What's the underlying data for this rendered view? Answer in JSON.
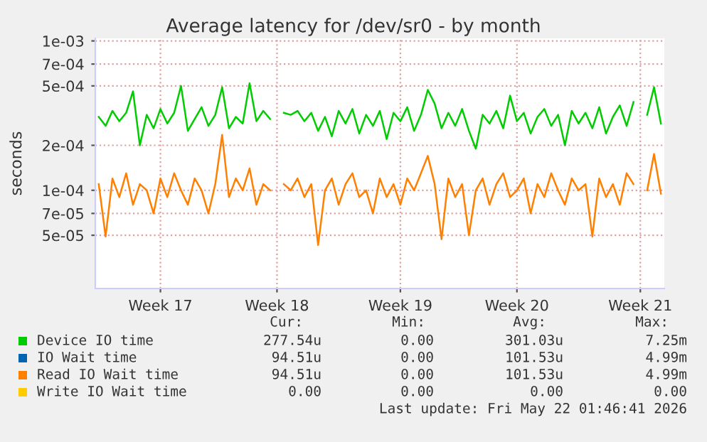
{
  "chart_data": {
    "type": "line",
    "title": "Average latency for /dev/sr0 - by month",
    "ylabel": "seconds",
    "log": "y",
    "grid": true,
    "legend": "bottom",
    "line_style": "solid",
    "marker": "none",
    "categories": [
      null,
      null,
      null,
      null,
      null,
      null,
      null,
      null,
      null,
      "Week 17",
      null,
      null,
      null,
      null,
      null,
      null,
      null,
      null,
      null,
      null,
      null,
      null,
      null,
      null,
      null,
      null,
      "Week 18",
      null,
      null,
      null,
      null,
      null,
      null,
      null,
      null,
      null,
      null,
      null,
      null,
      null,
      null,
      null,
      null,
      null,
      "Week 19",
      null,
      null,
      null,
      null,
      null,
      null,
      null,
      null,
      null,
      null,
      null,
      null,
      null,
      null,
      null,
      null,
      "Week 20",
      null,
      null,
      null,
      null,
      null,
      null,
      null,
      null,
      null,
      null,
      null,
      null,
      null,
      null,
      null,
      null,
      null,
      "Week 21",
      null,
      null,
      null
    ],
    "ylim": [
      2.2e-05,
      0.00104
    ],
    "yticks": [
      {
        "value": 5e-05,
        "label": "5e-05"
      },
      {
        "value": 7e-05,
        "label": "7e-05"
      },
      {
        "value": 0.0001,
        "label": "1e-04"
      },
      {
        "value": 0.0002,
        "label": "2e-04"
      },
      {
        "value": 0.0005,
        "label": "5e-04"
      },
      {
        "value": 0.0007,
        "label": "7e-04"
      },
      {
        "value": 0.001,
        "label": "1e-03"
      }
    ],
    "series": [
      {
        "name": "Device IO time",
        "color": "#00cc00",
        "values": [
          0.00031,
          0.00027,
          0.00034,
          0.00029,
          0.00033,
          0.00046,
          0.0002,
          0.00032,
          0.00026,
          0.00035,
          0.00028,
          0.00033,
          0.0005,
          0.00025,
          0.0003,
          0.00036,
          0.00027,
          0.00032,
          0.00049,
          0.00026,
          0.00031,
          0.00028,
          0.00052,
          0.00029,
          0.00034,
          0.0003,
          null,
          0.00033,
          0.00032,
          0.00034,
          0.00029,
          0.00033,
          0.00025,
          0.00031,
          0.00023,
          0.00034,
          0.00028,
          0.00035,
          0.00024,
          0.00032,
          0.00027,
          0.00034,
          0.00022,
          0.00033,
          0.00029,
          0.00036,
          0.00025,
          0.00032,
          0.00047,
          0.00038,
          0.00026,
          0.00033,
          0.00027,
          0.00035,
          0.00025,
          0.00019,
          0.00032,
          0.00028,
          0.00034,
          0.00026,
          0.00043,
          0.00029,
          0.00033,
          0.00024,
          0.00031,
          0.00035,
          0.00027,
          0.00032,
          0.0002,
          0.00034,
          0.00028,
          0.00033,
          0.00026,
          0.00036,
          0.00024,
          0.00031,
          0.00037,
          0.00027,
          0.00039,
          null,
          0.00032,
          0.00049,
          0.00028
        ]
      },
      {
        "name": "IO Wait time",
        "color": "#0066b3",
        "values": [
          null,
          null,
          null,
          null,
          null,
          null,
          null,
          null,
          null,
          null,
          null,
          null,
          null,
          null,
          null,
          null,
          null,
          null,
          null,
          null,
          null,
          null,
          null,
          null,
          null,
          null,
          null,
          null,
          null,
          null,
          null,
          null,
          null,
          null,
          null,
          null,
          null,
          null,
          null,
          null,
          null,
          null,
          null,
          null,
          null,
          null,
          null,
          null,
          null,
          null,
          null,
          null,
          null,
          null,
          null,
          null,
          null,
          null,
          null,
          null,
          null,
          null,
          null,
          null,
          null,
          null,
          null,
          null,
          null,
          null,
          null,
          null,
          null,
          null,
          null,
          null,
          null,
          null,
          null,
          null,
          null,
          null,
          null
        ]
      },
      {
        "name": "Read IO Wait time",
        "color": "#ff8000",
        "values": [
          0.00011,
          4.9e-05,
          0.00012,
          9e-05,
          0.00013,
          8e-05,
          0.00011,
          0.0001,
          7e-05,
          0.00012,
          9e-05,
          0.00013,
          0.0001,
          8e-05,
          0.00012,
          0.0001,
          7e-05,
          0.00011,
          0.000235,
          9e-05,
          0.00012,
          0.0001,
          0.00014,
          8e-05,
          0.00011,
          0.0001,
          null,
          0.00011,
          0.0001,
          0.00012,
          9e-05,
          0.00011,
          4.3e-05,
          0.0001,
          0.00012,
          8e-05,
          0.00011,
          0.00013,
          9e-05,
          0.0001,
          7e-05,
          0.00012,
          9e-05,
          0.00011,
          8e-05,
          0.00012,
          0.0001,
          0.00013,
          0.00017,
          0.00011,
          4.7e-05,
          0.00012,
          9e-05,
          0.00011,
          5e-05,
          0.0001,
          0.00012,
          8e-05,
          0.00011,
          0.00013,
          9e-05,
          0.0001,
          0.00012,
          7e-05,
          0.00011,
          9e-05,
          0.00013,
          0.0001,
          8e-05,
          0.00012,
          0.0001,
          0.00011,
          4.9e-05,
          0.00012,
          9e-05,
          0.00011,
          8e-05,
          0.00013,
          0.00011,
          null,
          0.0001,
          0.000175,
          9.5e-05
        ]
      },
      {
        "name": "Write IO Wait time",
        "color": "#ffcc00",
        "values": [
          null,
          null,
          null,
          null,
          null,
          null,
          null,
          null,
          null,
          null,
          null,
          null,
          null,
          null,
          null,
          null,
          null,
          null,
          null,
          null,
          null,
          null,
          null,
          null,
          null,
          null,
          null,
          null,
          null,
          null,
          null,
          null,
          null,
          null,
          null,
          null,
          null,
          null,
          null,
          null,
          null,
          null,
          null,
          null,
          null,
          null,
          null,
          null,
          null,
          null,
          null,
          null,
          null,
          null,
          null,
          null,
          null,
          null,
          null,
          null,
          null,
          null,
          null,
          null,
          null,
          null,
          null,
          null,
          null,
          null,
          null,
          null,
          null,
          null,
          null,
          null,
          null,
          null,
          null,
          null,
          null,
          null,
          null
        ]
      }
    ],
    "annotations": [
      "Cur:",
      "Min:",
      "Avg:",
      "Max:",
      "277.54u",
      "0.00",
      "301.03u",
      "7.25m",
      "94.51u",
      "0.00",
      "101.53u",
      "4.99m",
      "94.51u",
      "0.00",
      "101.53u",
      "4.99m",
      "0.00",
      "0.00",
      "0.00",
      "0.00",
      "Last update: Fri May 22 01:46:41 2026"
    ]
  }
}
